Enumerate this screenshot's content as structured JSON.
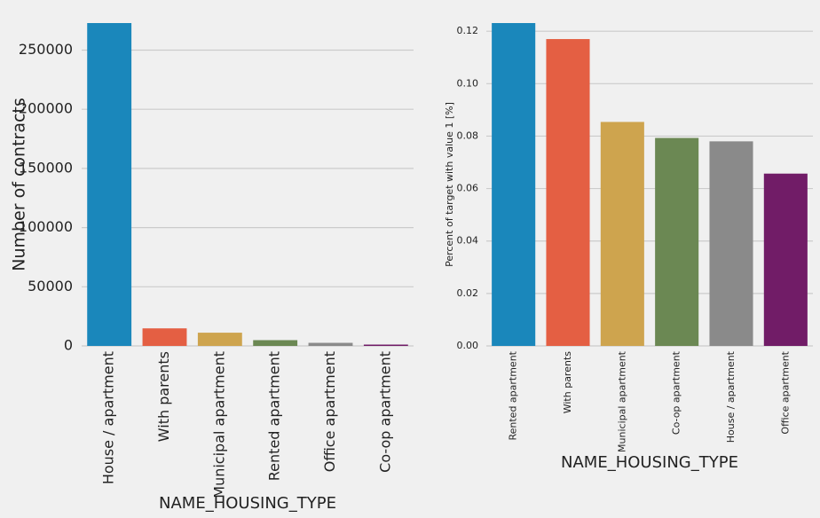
{
  "chart_data": [
    {
      "type": "bar",
      "categories": [
        "House / apartment",
        "With parents",
        "Municipal apartment",
        "Rented apartment",
        "Office apartment",
        "Co-op apartment"
      ],
      "values": [
        272868,
        14840,
        11183,
        4881,
        2617,
        1122
      ],
      "xlabel": "NAME_HOUSING_TYPE",
      "ylabel": "Number of contracts",
      "ylim": [
        0,
        272868
      ],
      "yticks": [
        0,
        50000,
        100000,
        150000,
        200000,
        250000
      ],
      "ytick_labels": [
        "0",
        "50000",
        "100000",
        "150000",
        "200000",
        "250000"
      ],
      "grid": true,
      "colors": [
        "#1a87bb",
        "#e45f43",
        "#cea44e",
        "#6b8853",
        "#8a8a8a",
        "#711c67"
      ]
    },
    {
      "type": "bar",
      "categories": [
        "Rented apartment",
        "With parents",
        "Municipal apartment",
        "Co-op apartment",
        "House / apartment",
        "Office apartment"
      ],
      "values": [
        0.1231,
        0.117,
        0.0854,
        0.0793,
        0.078,
        0.0657
      ],
      "xlabel": "NAME_HOUSING_TYPE",
      "ylabel": "Percent of target with value 1 [%]",
      "ylim": [
        0,
        0.1231
      ],
      "yticks": [
        0,
        0.02,
        0.04,
        0.06,
        0.08,
        0.1,
        0.12
      ],
      "ytick_labels": [
        "0.00",
        "0.02",
        "0.04",
        "0.06",
        "0.08",
        "0.10",
        "0.12"
      ],
      "grid": true,
      "colors": [
        "#1a87bb",
        "#e45f43",
        "#cea44e",
        "#6b8853",
        "#8a8a8a",
        "#711c67"
      ]
    }
  ]
}
